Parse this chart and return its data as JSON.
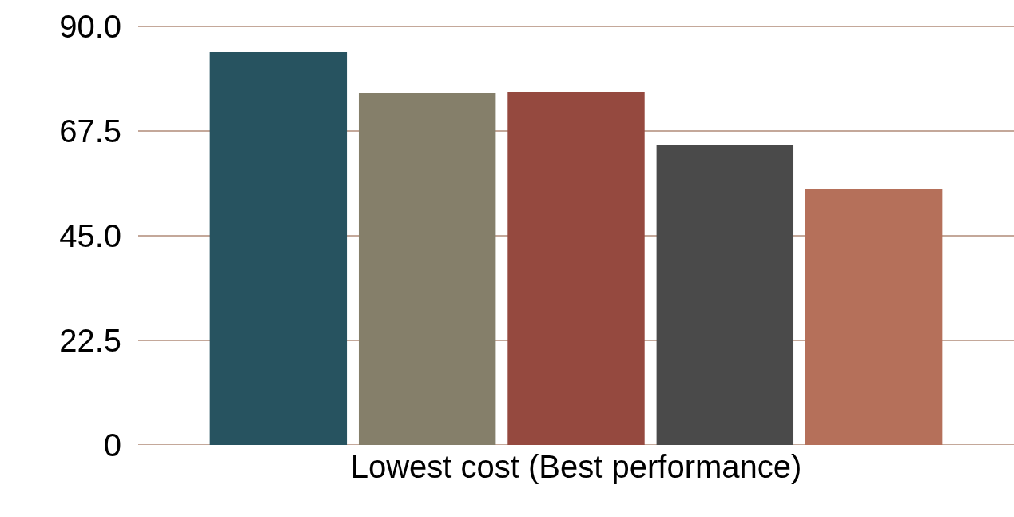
{
  "chart_data": {
    "type": "bar",
    "categories": [
      "Lowest cost (Best performance)"
    ],
    "series": [
      {
        "color": "#275360",
        "values": [
          84.5
        ]
      },
      {
        "color": "#857f6a",
        "values": [
          75.7
        ]
      },
      {
        "color": "#95493f",
        "values": [
          75.9
        ]
      },
      {
        "color": "#4a4a4a",
        "values": [
          64.4
        ]
      },
      {
        "color": "#b5705a",
        "values": [
          55.1
        ]
      }
    ],
    "ylim": [
      0,
      90
    ],
    "yticks": [
      0,
      22.5,
      {
        "value": 45,
        "label": "45.0"
      },
      67.5,
      {
        "value": 90,
        "label": "90.0"
      }
    ],
    "grid": "y"
  }
}
